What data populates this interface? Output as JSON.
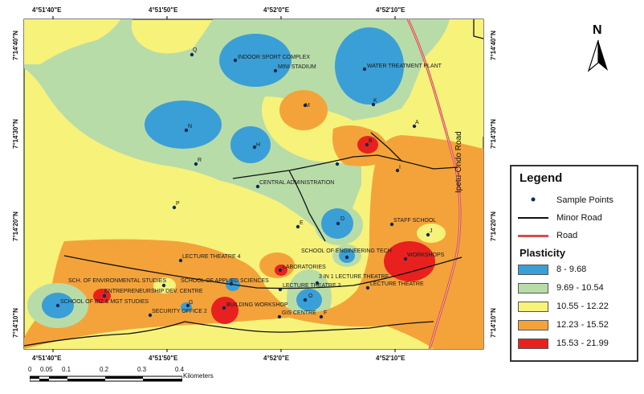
{
  "map": {
    "top_ticks": [
      "4°51'40\"E",
      "4°51'50\"E",
      "4°52'0\"E",
      "4°52'10\"E"
    ],
    "bottom_ticks": [
      "4°51'40\"E",
      "4°51'50\"E",
      "4°52'0\"E",
      "4°52'10\"E"
    ],
    "left_ticks": [
      "7°14'40\"N",
      "7°14'30\"N",
      "7°14'20\"N",
      "7°14'10\"N"
    ],
    "right_ticks": [
      "7°14'40\"N",
      "7°14'30\"N",
      "7°14'20\"N",
      "7°14'10\"N"
    ],
    "road_label": "Ipetu-Ondo Road",
    "north": "N",
    "sample_points": {
      "Q": "Q",
      "INDOOR": "INDOOR SPORT COMPLEX",
      "MINI": "MINI STADIUM",
      "WATER": "WATER TREATMENT PLANT",
      "K": "K",
      "M": "M",
      "N": "N",
      "H": "H",
      "A": "A",
      "B": "B",
      "R": "R",
      "I": "I",
      "CENTRAL": "CENTRAL ADMINISTRATION",
      "P": "P",
      "D": "D",
      "E": "E",
      "STAFF": "STAFF SCHOOL",
      "J": "J",
      "LT4": "LECTURE THEATRE 4",
      "ENGTECH": "SCHOOL OF ENGINEERING TECH",
      "WORKSHOPS": "WORKSHOPS",
      "LABS": "LABORATORIES",
      "ENVSTUD": "SCH. OF ENVIRONMENTAL STUDIES",
      "APPSCI": "SCHOOL OF APPLIED SCIENCES",
      "LT3IN1": "3 IN 1 LECTURE THEATRE",
      "LT2": "LECTURE THEATRE 2",
      "LT": "LECTURE THEATRE",
      "EDC": "ENTREPRENEURSHIP DEV. CENTRE",
      "BIZ": "SCHOOL OF BIZ & MGT STUDIES",
      "O": "O",
      "BUILD": "BUILDING WORKSHOP",
      "SEC": "SECURITY OFFICE 2",
      "GIS": "GIS CENTRE",
      "F": "F",
      "G": "G"
    }
  },
  "legend": {
    "title": "Legend",
    "sample_points": "Sample Points",
    "minor_road": "Minor Road",
    "road": "Road",
    "plasticity_title": "Plasticity",
    "classes": [
      {
        "label": "8 - 9.68",
        "color": "#3a9fd6"
      },
      {
        "label": "9.69 - 10.54",
        "color": "#b8dca8"
      },
      {
        "label": "10.55 - 12.22",
        "color": "#f7f27a"
      },
      {
        "label": "12.23 - 15.52",
        "color": "#f4a33a"
      },
      {
        "label": "15.53 - 21.99",
        "color": "#e8211f"
      }
    ]
  },
  "scale": {
    "ticks": [
      "0",
      "0.05",
      "0.1",
      "0.2",
      "0.3",
      "0.4"
    ],
    "unit": "Kilometers"
  }
}
